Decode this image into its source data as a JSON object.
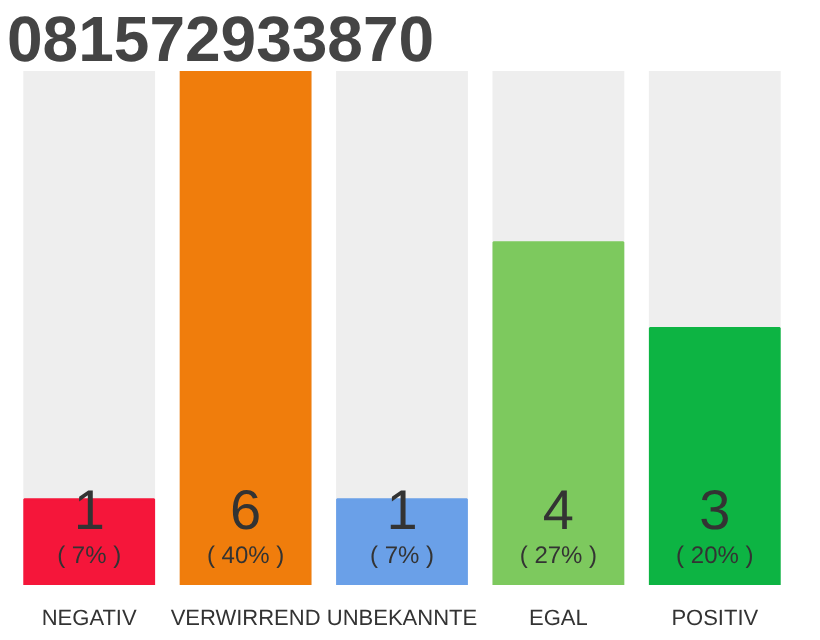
{
  "chart_data": {
    "type": "bar",
    "title": "081572933870",
    "categories": [
      "NEGATIV",
      "VERWIRREND",
      "UNBEKANNTE",
      "EGAL",
      "POSITIV"
    ],
    "values": [
      1,
      6,
      1,
      4,
      3
    ],
    "colors": [
      "#f5163a",
      "#f07d0c",
      "#6aa0e8",
      "#7dc95e",
      "#0db443"
    ],
    "data_labels": true,
    "annotations": [
      {
        "text": "( 7% )",
        "x": "NEGATIV",
        "y": 0
      },
      {
        "text": "( 40% )",
        "x": "VERWIRREND",
        "y": 0
      },
      {
        "text": "( 7% )",
        "x": "UNBEKANNTE",
        "y": 0
      },
      {
        "text": "( 27% )",
        "x": "EGAL",
        "y": 0
      },
      {
        "text": "( 20% )",
        "x": "POSITIV",
        "y": 0
      }
    ],
    "tick_labels": "x"
  }
}
